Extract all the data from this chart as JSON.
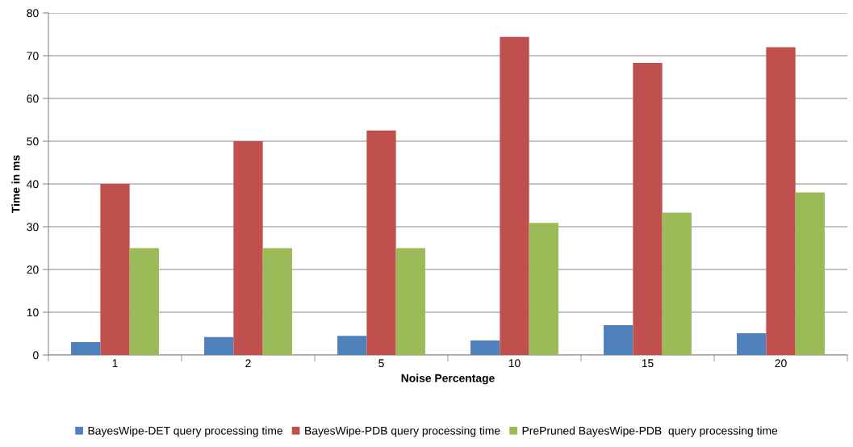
{
  "chart_data": {
    "type": "bar",
    "xlabel": "Noise Percentage",
    "ylabel": "Time in ms",
    "categories": [
      "1",
      "2",
      "5",
      "10",
      "15",
      "20"
    ],
    "series": [
      {
        "name": "BayesWipe-DET query processing time",
        "color": "#4f81bd",
        "values": [
          3.0,
          4.2,
          4.5,
          3.4,
          7.0,
          5.1
        ]
      },
      {
        "name": "BayesWipe-PDB query processing time",
        "color": "#c0504d",
        "values": [
          40,
          50,
          52.5,
          74.4,
          68.3,
          72
        ]
      },
      {
        "name": "PrePruned BayesWipe-PDB  query processing time",
        "color": "#9bbb59",
        "values": [
          25,
          25,
          25,
          30.9,
          33.3,
          38
        ]
      }
    ],
    "ylim": [
      0,
      80
    ],
    "yticks": [
      0,
      10,
      20,
      30,
      40,
      50,
      60,
      70,
      80
    ],
    "grid": "y",
    "legend": "bottom"
  }
}
